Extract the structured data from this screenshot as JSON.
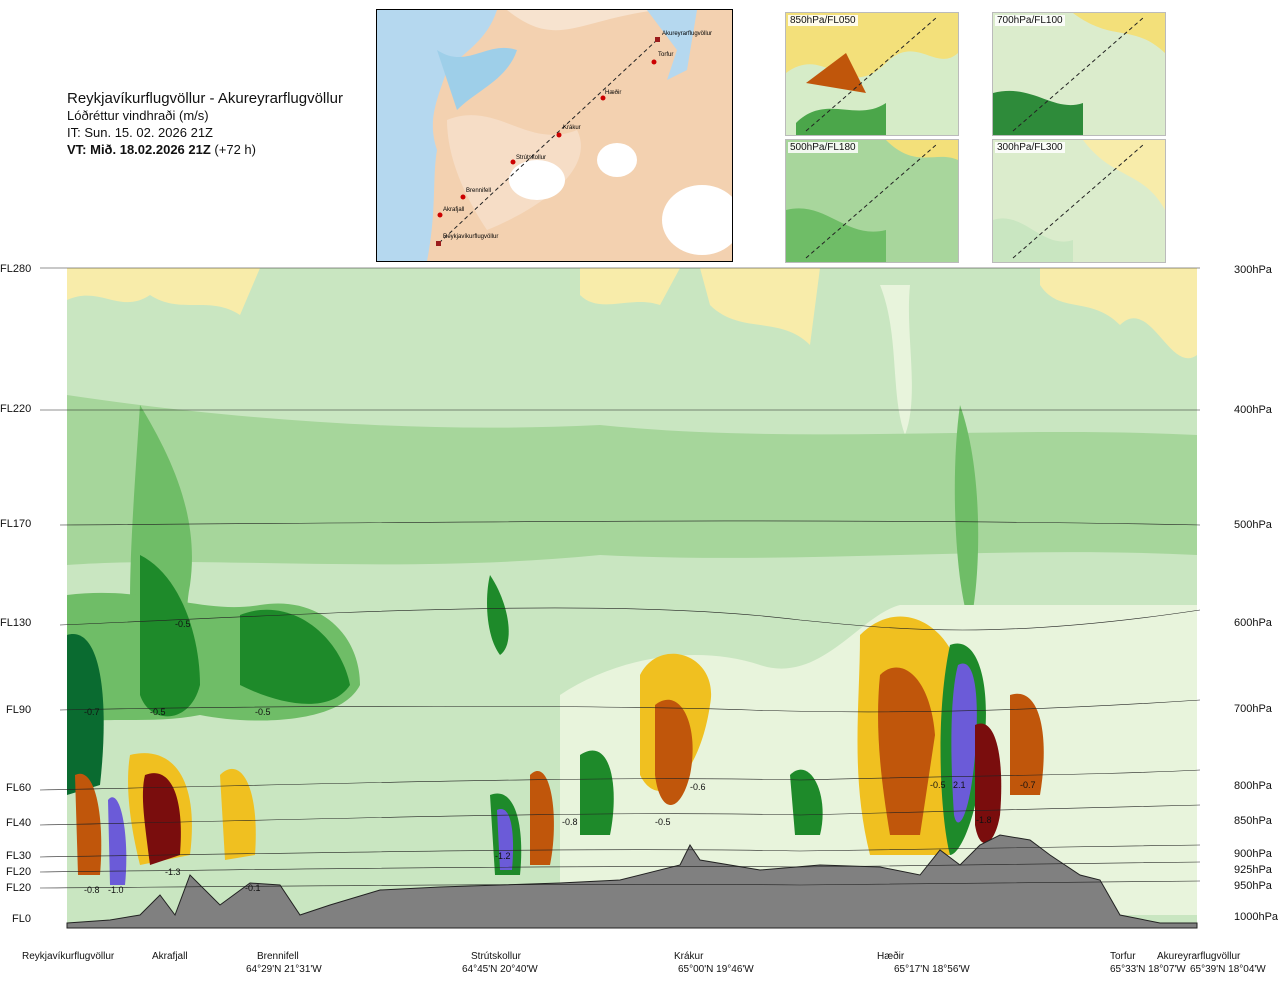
{
  "header": {
    "title": "Reykjavíkurflugvöllur - Akureyrarflugvöllur",
    "subtitle": "Lóðréttur vindhraði (m/s)",
    "issue_time": "IT: Sun. 15. 02. 2026 21Z",
    "valid_label": "VT: Mið. 18.02.2026 21Z",
    "valid_offset": "(+72 h)"
  },
  "route_map": {
    "labels": [
      "Akureyrarflugvöllur",
      "Torfur",
      "Hæðir",
      "Krákur",
      "Strútskollur",
      "Brennifell",
      "Akrafjall",
      "Reykjavíkurflugvöllur"
    ]
  },
  "panels": [
    {
      "label": "850hPa/FL050"
    },
    {
      "label": "700hPa/FL100"
    },
    {
      "label": "500hPa/FL180"
    },
    {
      "label": "300hPa/FL300"
    }
  ],
  "colors": {
    "strong_up": "#7a0d0d",
    "up2": "#c0560b",
    "up1": "#f0c020",
    "up0": "#f8ecaa",
    "neutral": "#e8f4dc",
    "down0": "#c9e6c1",
    "down1": "#a6d69b",
    "down2": "#6fbd67",
    "down3": "#1e8a2a",
    "down4": "#0a6b30",
    "strong_down": "#6b5bd8",
    "terrain": "#808080"
  },
  "chart_data": {
    "type": "heatmap",
    "variable": "Lóðréttur vindhraði (m/s)",
    "flight_levels": [
      "FL280",
      "FL220",
      "FL170",
      "FL130",
      "FL90",
      "FL60",
      "FL40",
      "FL30",
      "FL20",
      "FL20",
      "FL0"
    ],
    "pressure_levels": [
      "300hPa",
      "400hPa",
      "500hPa",
      "600hPa",
      "700hPa",
      "800hPa",
      "850hPa",
      "900hPa",
      "925hPa",
      "950hPa",
      "1000hPa"
    ],
    "route_points": [
      {
        "name": "Reykjavíkurflugvöllur",
        "coord": ""
      },
      {
        "name": "Akrafjall",
        "coord": ""
      },
      {
        "name": "Brennifell",
        "coord": "64°29'N 21°31'W"
      },
      {
        "name": "Strútskollur",
        "coord": "64°45'N 20°40'W"
      },
      {
        "name": "Krákur",
        "coord": "65°00'N 19°46'W"
      },
      {
        "name": "Hæðir",
        "coord": "65°17'N 18°56'W"
      },
      {
        "name": "Torfur",
        "coord": "65°33'N 18°07'W"
      },
      {
        "name": "Akureyrarflugvöllur",
        "coord": "65°39'N 18°04'W"
      }
    ],
    "annotations": [
      "-0.7",
      "-0.5",
      "-0.5",
      "-0.5",
      "-0.8",
      "-1.0",
      "-1.3",
      "-0.1",
      "-1.2",
      "-0.8",
      "-0.6",
      "-0.5",
      "-0.5",
      "2.1",
      "-1.8",
      "-0.7"
    ]
  }
}
